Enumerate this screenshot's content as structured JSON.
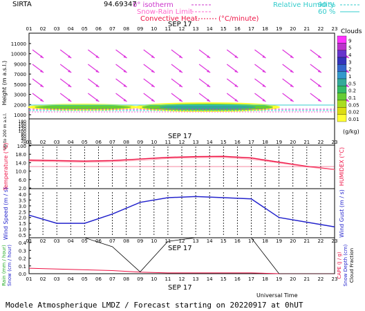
{
  "header": {
    "station": "SIRTA",
    "coords": "94.69347",
    "legend_isotherm": "0° isotherm",
    "legend_snow_rain": "Snow-Rain Limit",
    "legend_convective": "Convective Heat.",
    "legend_convective_unit": "(°C/minute)",
    "legend_rh": "Relative Humidity",
    "rh_90": "90 %",
    "rh_60": "60 %"
  },
  "hours": [
    "01",
    "02",
    "03",
    "04",
    "05",
    "06",
    "07",
    "08",
    "09",
    "10",
    "11",
    "12",
    "13",
    "14",
    "15",
    "16",
    "17",
    "18",
    "19",
    "20",
    "21",
    "22",
    "23"
  ],
  "date_label": "SEP 17",
  "clouds_title": "Clouds",
  "clouds_unit": "(g/kg)",
  "cloud_scale": [
    "9",
    "5",
    "4",
    "3",
    "2",
    "1",
    "0.5",
    "0.2",
    "0.1",
    "0.05",
    "0.02",
    "0.01"
  ],
  "cloud_colors": [
    "#ff33ff",
    "#bb33cc",
    "#6633cc",
    "#3333bb",
    "#3366cc",
    "#3399cc",
    "#33aa99",
    "#33bb66",
    "#66cc33",
    "#aadd22",
    "#dddd11",
    "#ffff33"
  ],
  "panel1": {
    "ylabel": "Height (m a.s.l.)",
    "ylabel_low": "Up to 200 m a.s.l.",
    "yticks_upper": [
      "11000",
      "10000",
      "9000",
      "7000",
      "5000",
      "3000",
      "2000",
      "1000"
    ],
    "yticks_lower": [
      "180",
      "160",
      "140",
      "120",
      "100",
      "80",
      "60",
      "40",
      "20",
      "0"
    ]
  },
  "panel2": {
    "ylabel_left": "Temperature (°C)",
    "ylabel_right": "HUMIDEX (°C)",
    "yticks": [
      "100",
      "18.0",
      "14.0",
      "10.0",
      "6.0",
      "2.0"
    ]
  },
  "panel3": {
    "ylabel_left": "Wind Speed (m / s)",
    "ylabel_right": "Wind Gust (m / s)",
    "yticks": [
      "4.0",
      "3.5",
      "3.0",
      "2.5",
      "2.0",
      "1.5",
      "1.0",
      "0.5"
    ]
  },
  "panel4": {
    "ylabel_left_1": "Rain (mm / hour)",
    "ylabel_left_2": "Snow (cm / hour)",
    "ylabel_right_1": "CAPE (J / g)",
    "ylabel_right_2": "Snow Depth (cm)",
    "ylabel_right_3": "Cloud Fraction",
    "yticks": [
      "0.4",
      "0.3",
      "0.2",
      "0.1",
      "0.0"
    ],
    "xlabel": "Universal Time"
  },
  "footer": "Modele Atmospherique LMDZ / Forecast starting on 20220917 at 0hUT",
  "chart_data": [
    {
      "type": "line",
      "title": "Temperature",
      "x": [
        "01",
        "03",
        "05",
        "07",
        "09",
        "11",
        "13",
        "15",
        "17",
        "19",
        "21",
        "23"
      ],
      "series": [
        {
          "name": "Temperature",
          "values": [
            12.6,
            12.4,
            12.2,
            12.4,
            13.0,
            13.6,
            13.9,
            14.0,
            13.4,
            11.8,
            10.2,
            9.0
          ]
        },
        {
          "name": "HUMIDEX",
          "values": [
            12.2,
            12.0,
            11.8,
            12.0,
            12.5,
            13.2,
            13.5,
            13.6,
            12.9,
            11.5,
            10.0,
            8.9
          ]
        }
      ]
    },
    {
      "type": "line",
      "title": "Wind Speed",
      "x": [
        "01",
        "03",
        "05",
        "07",
        "09",
        "11",
        "13",
        "15",
        "17",
        "19",
        "21",
        "23"
      ],
      "series": [
        {
          "name": "Wind Speed",
          "values": [
            2.2,
            1.5,
            1.5,
            2.3,
            3.3,
            3.7,
            3.8,
            3.7,
            3.6,
            2.0,
            1.6,
            1.2
          ]
        }
      ]
    },
    {
      "type": "line",
      "title": "Rain / Cloud",
      "x": [
        "01",
        "03",
        "05",
        "07",
        "09",
        "11",
        "13",
        "15",
        "17",
        "19",
        "21",
        "23"
      ],
      "series": [
        {
          "name": "Rain",
          "values": [
            0.07,
            0.06,
            0.05,
            0.04,
            0.02,
            0.01,
            0.01,
            0.01,
            0.01,
            0.0,
            0.0,
            0.0
          ]
        },
        {
          "name": "Cloud Fraction",
          "values": [
            1.0,
            1.0,
            1.0,
            0.75,
            0.05,
            0.9,
            1.0,
            1.0,
            1.0,
            0.0,
            0.0,
            0.0
          ]
        }
      ]
    }
  ]
}
